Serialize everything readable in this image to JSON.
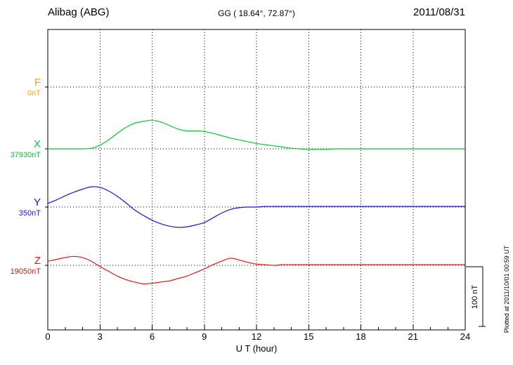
{
  "header": {
    "station": "Alibag (ABG)",
    "coords": "GG ( 18.64°,  72.87°)",
    "date": "2011/08/31"
  },
  "chart_data": {
    "type": "line",
    "title": "Alibag (ABG) magnetogram 2011/08/31",
    "x_label": "U T (hour)",
    "x_ticks": [
      0,
      3,
      6,
      9,
      12,
      15,
      18,
      21,
      24
    ],
    "x_tick_labels": [
      "0",
      "3",
      "6",
      "9",
      "12",
      "15",
      "18",
      "21",
      "24"
    ],
    "x_range": [
      0,
      24
    ],
    "x_start": 0,
    "x_step": 0.5,
    "grid": "dotted",
    "scale_bar": {
      "label": "100 nT",
      "nT": 100
    },
    "series": [
      {
        "name": "F",
        "label": "F",
        "baseline_label": "0nT",
        "baseline_value_nT": 0,
        "color": "#ffa500",
        "offsets_nT": []
      },
      {
        "name": "X",
        "label": "X",
        "baseline_label": "37930nT",
        "baseline_value_nT": 37930,
        "color": "#00c832",
        "offsets_nT": [
          0,
          0,
          0,
          0,
          0,
          1,
          6,
          15,
          26,
          36,
          43,
          46,
          48,
          45,
          39,
          33,
          30,
          30,
          29,
          26,
          22,
          18,
          15,
          12,
          9,
          7,
          5,
          3,
          1,
          0,
          -1,
          -1,
          -1,
          0,
          0,
          0,
          0,
          0,
          0,
          0,
          0,
          0,
          0,
          0,
          0,
          0,
          0,
          0,
          0
        ]
      },
      {
        "name": "Y",
        "label": "Y",
        "baseline_label": "350nT",
        "baseline_value_nT": 350,
        "color": "#1414dc",
        "offsets_nT": [
          6,
          12,
          19,
          25,
          30,
          34,
          33,
          27,
          18,
          7,
          -5,
          -14,
          -22,
          -28,
          -32,
          -34,
          -33,
          -30,
          -26,
          -18,
          -10,
          -4,
          -1,
          0,
          0,
          1,
          1,
          1,
          1,
          1,
          1,
          1,
          1,
          1,
          1,
          1,
          1,
          1,
          1,
          1,
          1,
          1,
          1,
          1,
          1,
          1,
          1,
          1,
          1
        ]
      },
      {
        "name": "Z",
        "label": "Z",
        "baseline_label": "19050nT",
        "baseline_value_nT": 19050,
        "color": "#e61414",
        "offsets_nT": [
          7,
          10,
          13,
          15,
          13,
          7,
          -2,
          -10,
          -18,
          -24,
          -28,
          -31,
          -30,
          -28,
          -26,
          -22,
          -18,
          -12,
          -6,
          1,
          7,
          12,
          9,
          5,
          2,
          1,
          0,
          1,
          1,
          1,
          1,
          1,
          1,
          1,
          1,
          1,
          1,
          1,
          1,
          1,
          1,
          1,
          1,
          1,
          1,
          1,
          1,
          1,
          1
        ]
      }
    ]
  },
  "footer": {
    "plotted": "Plotted at 2011/10/01  00:59 UT"
  }
}
